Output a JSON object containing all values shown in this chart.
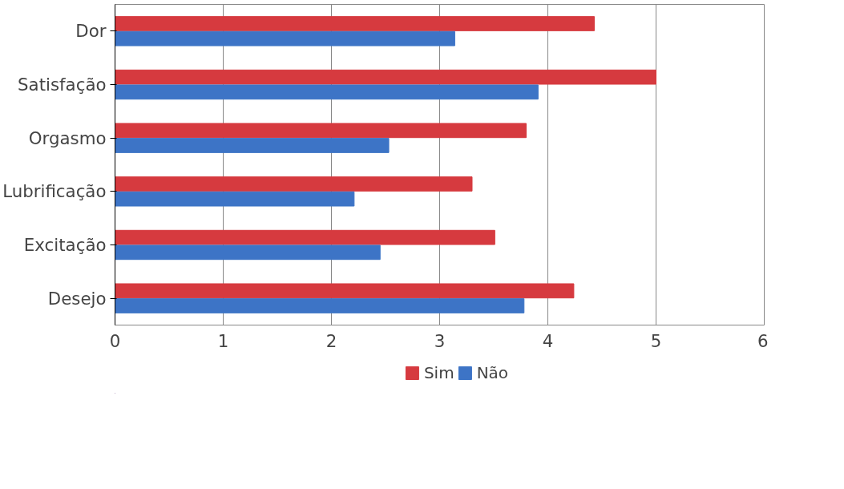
{
  "chart_data": {
    "type": "bar",
    "orientation": "horizontal",
    "categories": [
      "Dor",
      "Satisfação",
      "Orgasmo",
      "Lubrificação",
      "Excitação",
      "Desejo"
    ],
    "series": [
      {
        "name": "Sim",
        "color": "#d63a3f",
        "values": [
          4.43,
          5.0,
          3.8,
          3.3,
          3.51,
          4.24
        ]
      },
      {
        "name": "Não",
        "color": "#3d74c6",
        "values": [
          3.14,
          3.91,
          2.53,
          2.21,
          2.45,
          3.78
        ]
      }
    ],
    "xlim": [
      0,
      6
    ],
    "xticks": [
      0,
      1,
      2,
      3,
      4,
      5,
      6
    ],
    "grid": "x",
    "legend": "bottom"
  }
}
